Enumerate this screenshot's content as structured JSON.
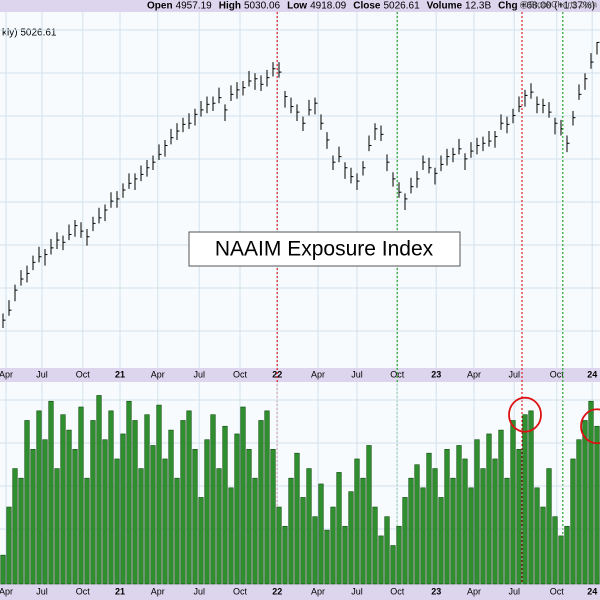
{
  "header": {
    "items": [
      {
        "label": "Open",
        "value": "4957.19"
      },
      {
        "label": "High",
        "value": "5030.06"
      },
      {
        "label": "Low",
        "value": "4918.09"
      },
      {
        "label": "Close",
        "value": "5026.61"
      },
      {
        "label": "Volume",
        "value": "12.3B"
      },
      {
        "label": "Chg",
        "value": "+68.00 (+1.37%)"
      }
    ],
    "source": "@StockCharts.com"
  },
  "chart_data": [
    {
      "type": "ohlc",
      "label": "kly) 5026.61",
      "color": "#000000",
      "grid": true,
      "xlim": [
        0,
        100
      ],
      "ylim": [
        2100,
        5300
      ],
      "xticks": [
        {
          "value": 1,
          "label": "Apr"
        },
        {
          "value": 7,
          "label": "Jul"
        },
        {
          "value": 13.8,
          "label": "Oct"
        },
        {
          "value": 20,
          "label": "21"
        },
        {
          "value": 26.3,
          "label": "Apr"
        },
        {
          "value": 33.2,
          "label": "Jul"
        },
        {
          "value": 40,
          "label": "Oct"
        },
        {
          "value": 46.2,
          "label": "22"
        },
        {
          "value": 53,
          "label": "Apr"
        },
        {
          "value": 59.5,
          "label": "Jul"
        },
        {
          "value": 66.2,
          "label": "Oct"
        },
        {
          "value": 72.7,
          "label": "23"
        },
        {
          "value": 79,
          "label": "Apr"
        },
        {
          "value": 85.7,
          "label": "Jul"
        },
        {
          "value": 92.8,
          "label": "Oct"
        },
        {
          "value": 98.7,
          "label": "24"
        }
      ],
      "markers": [
        {
          "value": 46.2,
          "color": "#dd2222"
        },
        {
          "value": 66.2,
          "color": "#22aa22"
        },
        {
          "value": 87,
          "color": "#dd2222"
        },
        {
          "value": 93.8,
          "color": "#22aa22"
        }
      ],
      "high": [
        2590,
        2710,
        2850,
        2980,
        3020,
        3110,
        3190,
        3170,
        3260,
        3320,
        3290,
        3390,
        3430,
        3410,
        3350,
        3460,
        3540,
        3570,
        3680,
        3690,
        3760,
        3850,
        3850,
        3920,
        3970,
        4010,
        4110,
        4150,
        4250,
        4300,
        4350,
        4390,
        4430,
        4500,
        4540,
        4540,
        4620,
        4470,
        4640,
        4670,
        4680,
        4770,
        4750,
        4730,
        4780,
        4850,
        4850,
        4590,
        4530,
        4470,
        4360,
        4510,
        4530,
        4380,
        4220,
        4010,
        4090,
        3950,
        3900,
        3850,
        3960,
        4190,
        4300,
        4280,
        4020,
        3860,
        3770,
        3670,
        3810,
        3870,
        4010,
        3990,
        3900,
        4010,
        4070,
        4080,
        4160,
        4030,
        4130,
        4170,
        4180,
        4230,
        4230,
        4380,
        4360,
        4430,
        4540,
        4600,
        4660,
        4540,
        4520,
        4490,
        4350,
        4330,
        4190,
        4410,
        4650,
        4750,
        4930,
        5030.06
      ],
      "low": [
        2460,
        2570,
        2700,
        2840,
        2870,
        2980,
        3050,
        3020,
        3120,
        3170,
        3160,
        3250,
        3280,
        3270,
        3200,
        3330,
        3400,
        3420,
        3540,
        3540,
        3630,
        3710,
        3700,
        3780,
        3820,
        3880,
        3970,
        4000,
        4110,
        4150,
        4220,
        4250,
        4280,
        4360,
        4390,
        4410,
        4480,
        4320,
        4500,
        4520,
        4550,
        4630,
        4600,
        4590,
        4630,
        4720,
        4710,
        4440,
        4390,
        4320,
        4230,
        4370,
        4380,
        4240,
        4070,
        3880,
        3950,
        3800,
        3760,
        3700,
        3830,
        4050,
        4150,
        4140,
        3870,
        3730,
        3630,
        3520,
        3670,
        3720,
        3880,
        3850,
        3750,
        3870,
        3920,
        3950,
        4020,
        3880,
        3990,
        4020,
        4050,
        4090,
        4080,
        4240,
        4210,
        4300,
        4400,
        4450,
        4520,
        4390,
        4390,
        4350,
        4200,
        4190,
        4040,
        4280,
        4510,
        4600,
        4790,
        4918.09
      ],
      "close": [
        2530,
        2620,
        2800,
        2900,
        2950,
        3050,
        3100,
        3120,
        3180,
        3250,
        3230,
        3300,
        3380,
        3330,
        3280,
        3400,
        3450,
        3520,
        3600,
        3620,
        3700,
        3760,
        3800,
        3840,
        3900,
        3950,
        4020,
        4100,
        4170,
        4230,
        4290,
        4300,
        4380,
        4420,
        4470,
        4480,
        4530,
        4420,
        4560,
        4600,
        4620,
        4680,
        4700,
        4650,
        4710,
        4790,
        4760,
        4540,
        4450,
        4400,
        4300,
        4420,
        4480,
        4300,
        4150,
        3950,
        4000,
        3900,
        3820,
        3780,
        3900,
        4100,
        4250,
        4200,
        3950,
        3800,
        3680,
        3620,
        3730,
        3800,
        3950,
        3900,
        3850,
        3930,
        4000,
        4020,
        4070,
        3980,
        4050,
        4100,
        4120,
        4140,
        4180,
        4300,
        4290,
        4370,
        4450,
        4550,
        4580,
        4470,
        4460,
        4400,
        4300,
        4250,
        4120,
        4350,
        4560,
        4700,
        4850,
        5026.61
      ]
    },
    {
      "type": "bar",
      "title": "NAAIM Exposure Index",
      "color": "#2f8f2f",
      "grid": true,
      "xlim": [
        0,
        100
      ],
      "ylim": [
        0,
        105
      ],
      "xticks": [
        {
          "value": 1,
          "label": "Apr"
        },
        {
          "value": 7,
          "label": "Jul"
        },
        {
          "value": 13.8,
          "label": "Oct"
        },
        {
          "value": 20,
          "label": "21"
        },
        {
          "value": 26.3,
          "label": "Apr"
        },
        {
          "value": 33.2,
          "label": "Jul"
        },
        {
          "value": 40,
          "label": "Oct"
        },
        {
          "value": 46.2,
          "label": "22"
        },
        {
          "value": 53,
          "label": "Apr"
        },
        {
          "value": 59.5,
          "label": "Jul"
        },
        {
          "value": 66.2,
          "label": "Oct"
        },
        {
          "value": 72.7,
          "label": "23"
        },
        {
          "value": 79,
          "label": "Apr"
        },
        {
          "value": 85.7,
          "label": "Jul"
        },
        {
          "value": 92.8,
          "label": "Oct"
        },
        {
          "value": 98.7,
          "label": "24"
        }
      ],
      "highlights": [
        87,
        99
      ],
      "values": [
        15,
        40,
        60,
        55,
        85,
        70,
        90,
        75,
        95,
        60,
        88,
        80,
        70,
        92,
        55,
        85,
        98,
        75,
        90,
        65,
        78,
        95,
        85,
        60,
        88,
        72,
        93,
        65,
        80,
        55,
        85,
        90,
        70,
        45,
        75,
        88,
        60,
        82,
        50,
        78,
        92,
        70,
        55,
        85,
        90,
        70,
        40,
        30,
        55,
        68,
        45,
        60,
        35,
        52,
        28,
        40,
        58,
        30,
        48,
        65,
        55,
        72,
        40,
        25,
        35,
        20,
        30,
        45,
        55,
        62,
        50,
        68,
        60,
        45,
        70,
        55,
        72,
        65,
        50,
        75,
        60,
        78,
        65,
        80,
        55,
        85,
        70,
        88,
        90,
        50,
        40,
        60,
        35,
        25,
        30,
        65,
        75,
        85,
        95,
        82
      ]
    }
  ]
}
